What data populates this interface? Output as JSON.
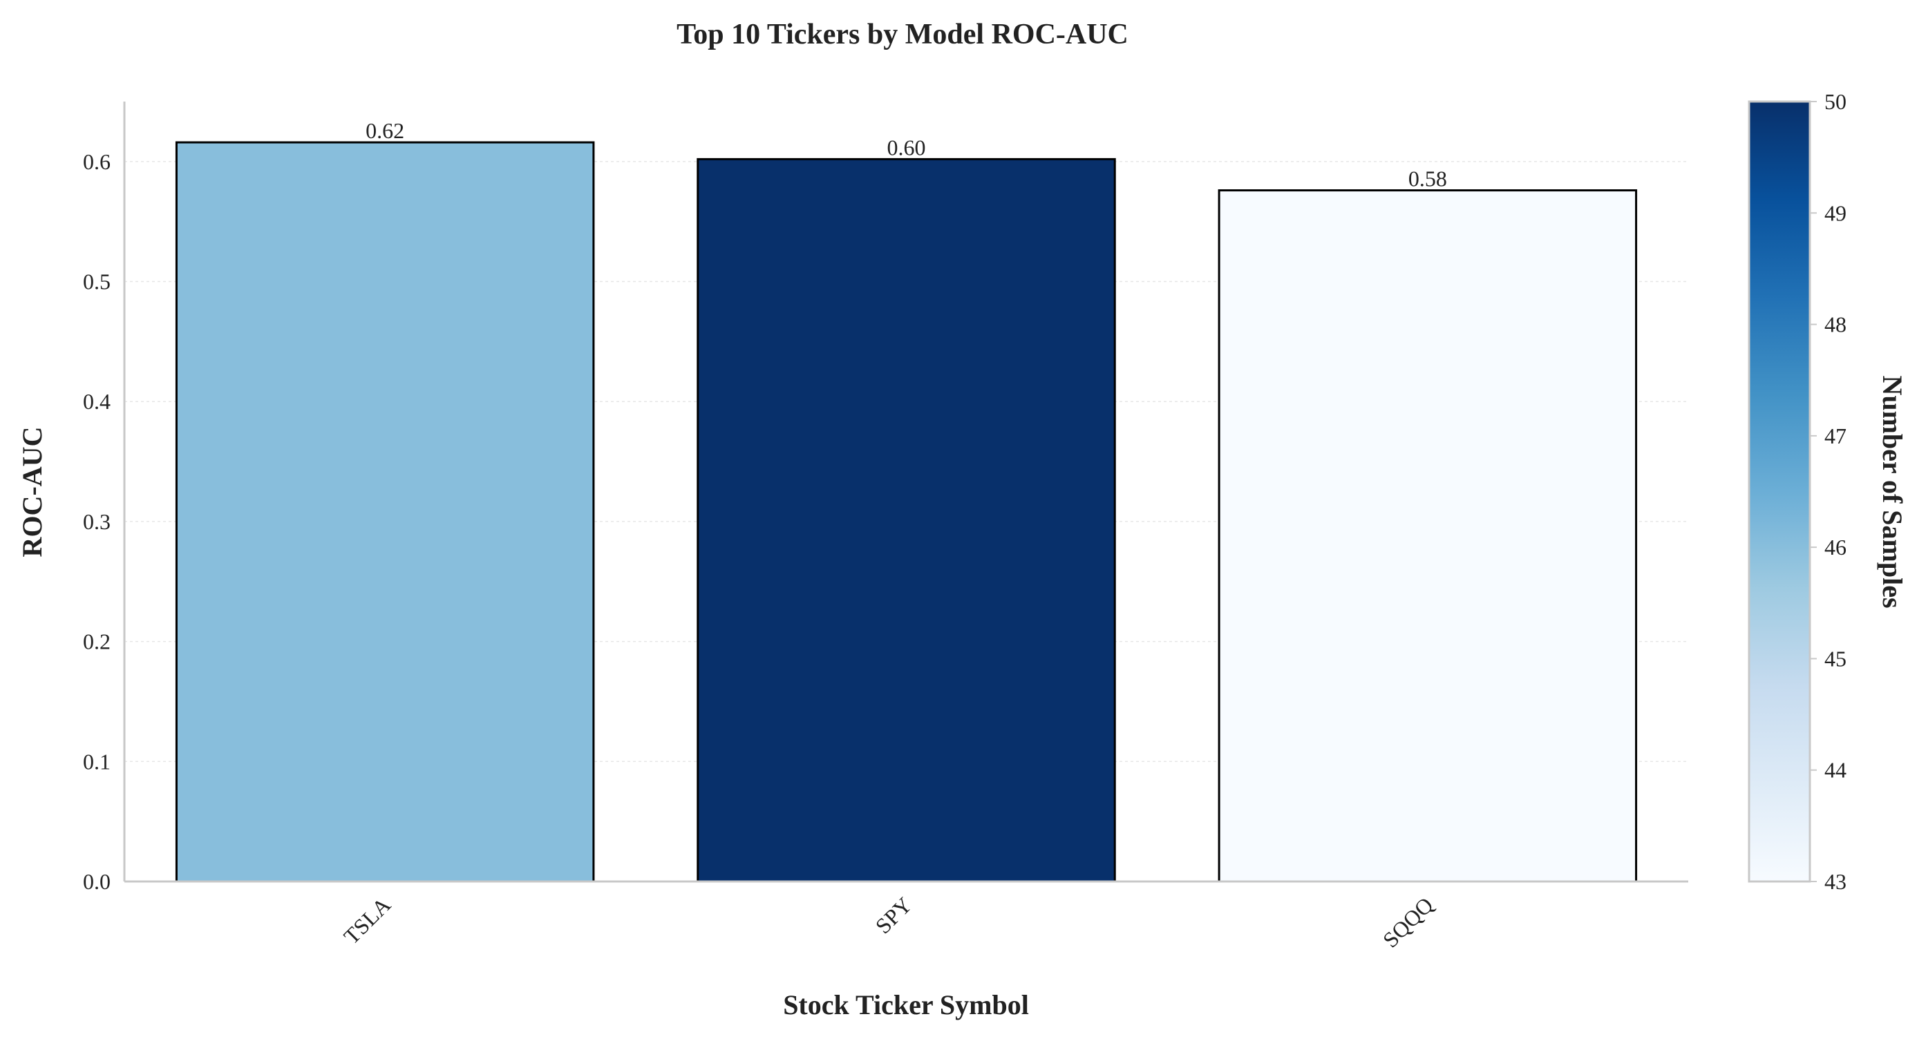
{
  "chart_data": {
    "type": "bar",
    "title": "Top 10 Tickers by Model ROC-AUC",
    "xlabel": "Stock Ticker Symbol",
    "ylabel": "ROC-AUC",
    "categories": [
      "TSLA",
      "SPY",
      "SQQQ"
    ],
    "values": [
      0.616,
      0.602,
      0.576
    ],
    "value_labels": [
      "0.62",
      "0.60",
      "0.58"
    ],
    "color_values": [
      46,
      50,
      43
    ],
    "ylim": [
      0,
      0.65
    ],
    "yticks": [
      0.0,
      0.1,
      0.2,
      0.3,
      0.4,
      0.5,
      0.6
    ],
    "ytick_labels": [
      "0.0",
      "0.1",
      "0.2",
      "0.3",
      "0.4",
      "0.5",
      "0.6"
    ],
    "grid": true,
    "colorbar": {
      "label": "Number of Samples",
      "range": [
        43,
        50
      ],
      "ticks": [
        43,
        44,
        45,
        46,
        47,
        48,
        49,
        50
      ],
      "colormap": "Blues"
    }
  }
}
